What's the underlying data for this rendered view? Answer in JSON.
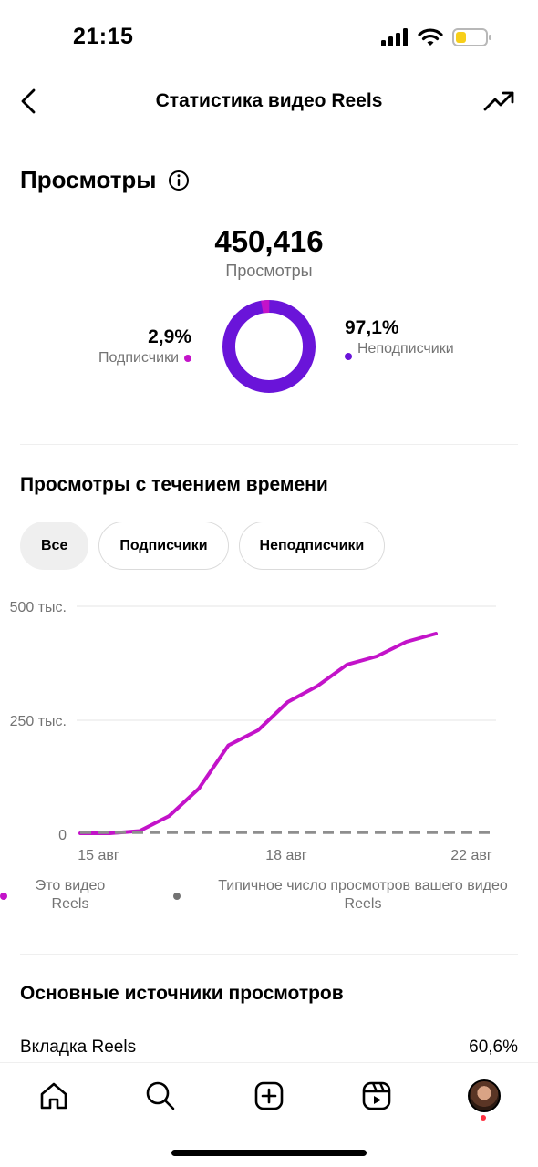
{
  "status_bar": {
    "time": "21:15"
  },
  "header": {
    "title": "Статистика видео Reels"
  },
  "views": {
    "title": "Просмотры",
    "total": "450,416",
    "total_label": "Просмотры",
    "followers_percent": "2,9%",
    "followers_label": "Подписчики",
    "non_followers_percent": "97,1%",
    "non_followers_label": "Неподписчики",
    "followers_share": 0.029
  },
  "over_time": {
    "title": "Просмотры с течением времени",
    "filters": [
      "Все",
      "Подписчики",
      "Неподписчики"
    ],
    "active_filter": "Все"
  },
  "chart_data": {
    "type": "line",
    "x_tick_labels": [
      "15 авг",
      "18 авг",
      "22 авг"
    ],
    "y_tick_labels": [
      "500 тыс.",
      "250 тыс.",
      "0"
    ],
    "ylim": [
      0,
      500000
    ],
    "grid": true,
    "series": [
      {
        "name": "Это видео Reels",
        "color": "#c313c9",
        "style": "solid",
        "values": [
          2000,
          2000,
          7000,
          40000,
          100000,
          195000,
          228000,
          290000,
          325000,
          372000,
          390000,
          422000,
          440000
        ]
      },
      {
        "name": "Типичное число просмотров вашего видео Reels",
        "color": "#8e8e8e",
        "style": "dashed",
        "values": [
          0,
          0,
          0,
          0,
          0,
          0,
          0,
          0,
          0,
          0,
          0,
          0,
          0,
          0,
          0
        ]
      }
    ],
    "legend": [
      "Это видео Reels",
      "Типичное число просмотров вашего видео Reels"
    ],
    "legend_position": "bottom"
  },
  "sources": {
    "title": "Основные источники просмотров",
    "rows": [
      {
        "label": "Вкладка Reels",
        "value": "60,6%"
      }
    ]
  },
  "colors": {
    "followers": "#c313c9",
    "non_followers": "#6a14d9",
    "typical": "#8e8e8e"
  },
  "tab_bar": {
    "items": [
      "home-icon",
      "search-icon",
      "create-icon",
      "reels-icon",
      "profile-avatar"
    ]
  }
}
